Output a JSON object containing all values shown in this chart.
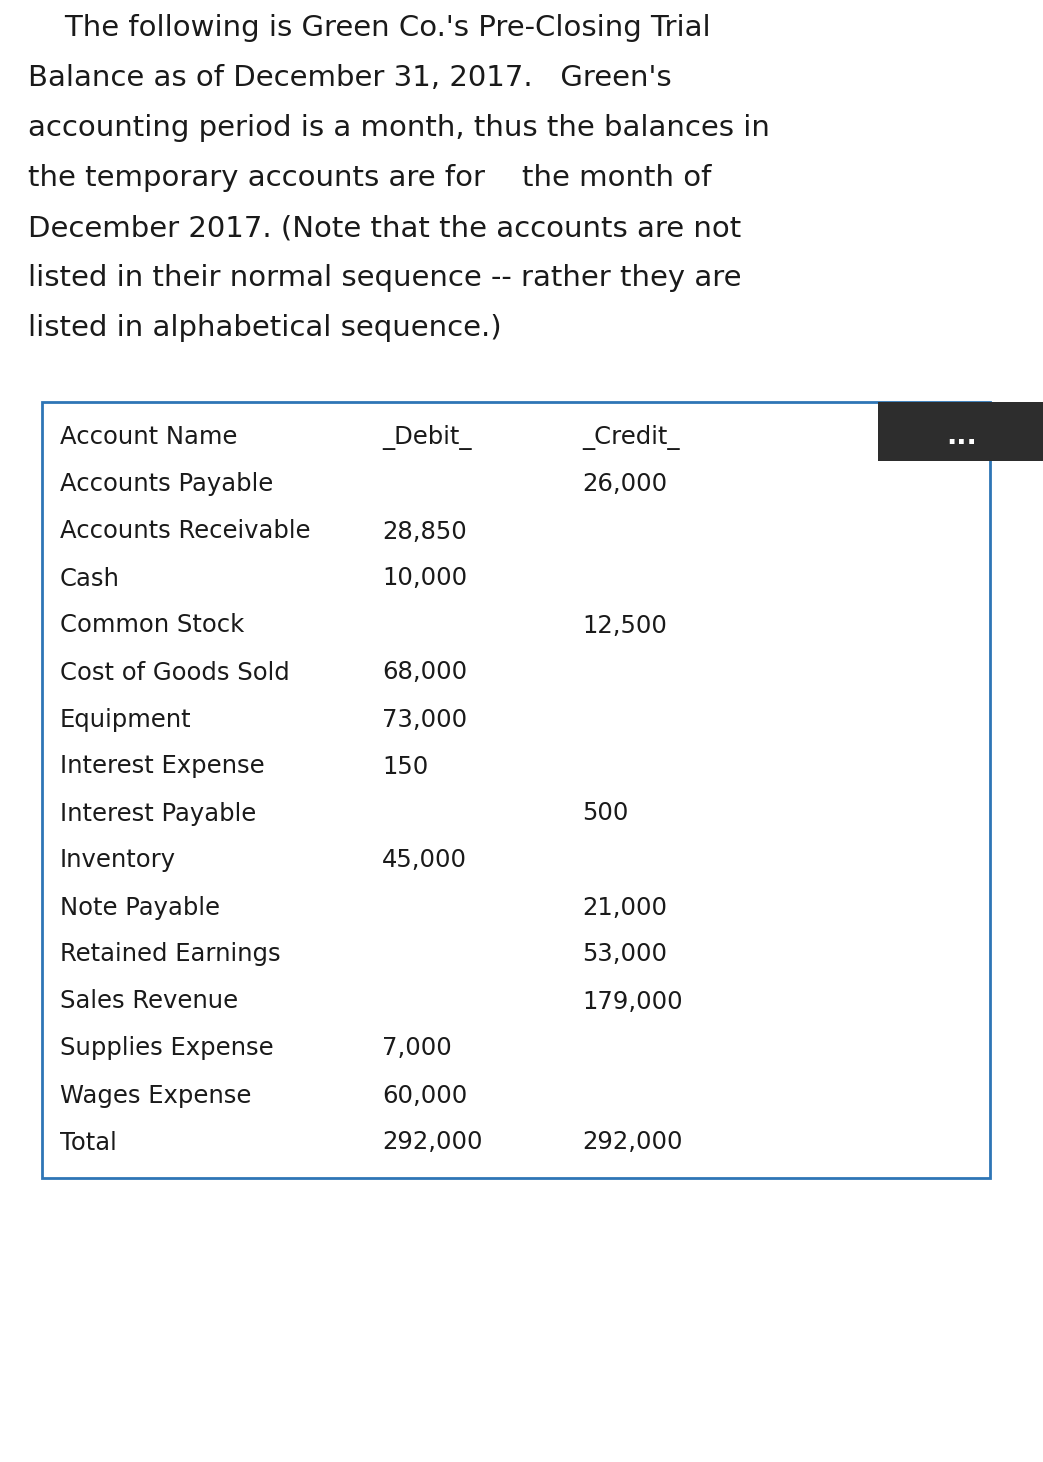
{
  "intro_lines": [
    "    The following is Green Co.'s Pre-Closing Trial",
    "Balance as of December 31, 2017.   Green's",
    "accounting period is a month, thus the balances in",
    "the temporary accounts are for    the month of",
    "December 2017. (Note that the accounts are not",
    "listed in their normal sequence -- rather they are",
    "listed in alphabetical sequence.)"
  ],
  "col_headers": [
    "Account Name",
    "_Debit_",
    "_Credit_"
  ],
  "rows": [
    [
      "Accounts Payable",
      "",
      "26,000"
    ],
    [
      "Accounts Receivable",
      "28,850",
      ""
    ],
    [
      "Cash",
      "10,000",
      ""
    ],
    [
      "Common Stock",
      "",
      "12,500"
    ],
    [
      "Cost of Goods Sold",
      "68,000",
      ""
    ],
    [
      "Equipment",
      "73,000",
      ""
    ],
    [
      "Interest Expense",
      "150",
      ""
    ],
    [
      "Interest Payable",
      "",
      "500"
    ],
    [
      "Inventory",
      "45,000",
      ""
    ],
    [
      "Note Payable",
      "",
      "21,000"
    ],
    [
      "Retained Earnings",
      "",
      "53,000"
    ],
    [
      "Sales Revenue",
      "",
      "179,000"
    ],
    [
      "Supplies Expense",
      "7,000",
      ""
    ],
    [
      "Wages Expense",
      "60,000",
      ""
    ],
    [
      "Total",
      "292,000",
      "292,000"
    ]
  ],
  "dots_label": "...",
  "bg_color": "#ffffff",
  "table_border_color": "#2e75b6",
  "table_bg": "#ffffff",
  "dots_bg": "#2d2d2d",
  "dots_color": "#ffffff",
  "text_color": "#1a1a1a",
  "intro_fontsize": 21,
  "header_fontsize": 17.5,
  "row_fontsize": 17.5,
  "fig_width": 10.43,
  "fig_height": 14.62,
  "dpi": 100
}
